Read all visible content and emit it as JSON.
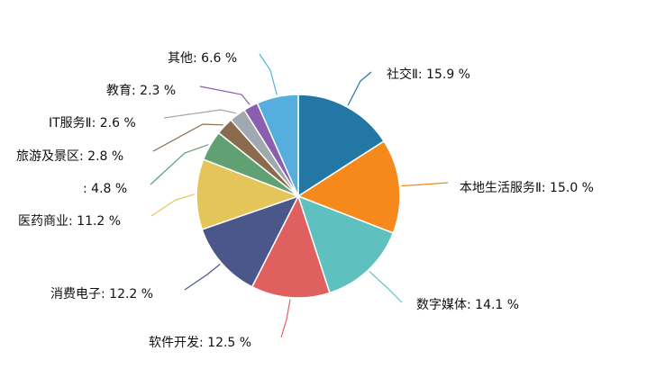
{
  "chart_data": {
    "type": "pie",
    "title": "",
    "labels": [
      "社交Ⅱ",
      "本地生活服务Ⅱ",
      "数字媒体",
      "软件开发",
      "消费电子",
      "医药商业",
      "",
      "旅游及景区",
      "IT服务Ⅱ",
      "教育",
      "其他"
    ],
    "values": [
      15.9,
      15.0,
      14.1,
      12.5,
      12.2,
      11.2,
      4.8,
      2.8,
      2.6,
      2.3,
      6.6
    ],
    "display_labels": [
      "社交Ⅱ: 15.9 %",
      "本地生活服务Ⅱ: 15.0 %",
      "数字媒体: 14.1 %",
      "软件开发: 12.5 %",
      "消费电子: 12.2 %",
      "医药商业: 11.2 %",
      ": 4.8 %",
      "旅游及景区: 2.8 %",
      "IT服务Ⅱ: 2.6 %",
      "教育: 2.3 %",
      "其他: 6.6 %"
    ],
    "colors": [
      "#2277a4",
      "#f5891c",
      "#5fc0c0",
      "#e06060",
      "#4b568a",
      "#e4c55a",
      "#61a073",
      "#8b6b4e",
      "#a0a8b0",
      "#8a5fb0",
      "#56aedf"
    ],
    "start_angle_deg": 0,
    "direction": "clockwise",
    "legend": "none",
    "label_placement": "outside-with-leader-lines"
  }
}
